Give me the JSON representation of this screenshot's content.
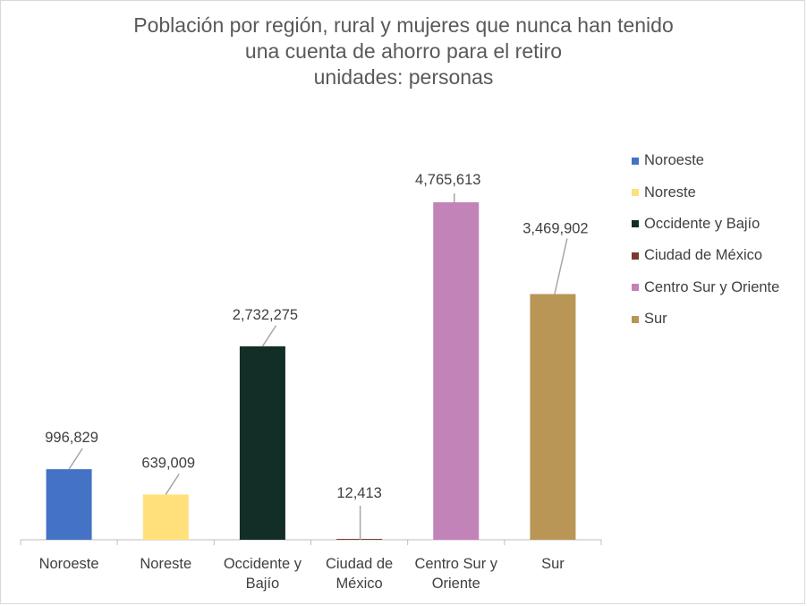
{
  "chart_data": {
    "type": "bar",
    "title_lines": [
      "Población por región, rural y mujeres que nunca han tenido",
      "una cuenta de ahorro para el retiro",
      "unidades: personas"
    ],
    "categories": [
      "Noroeste",
      "Noreste",
      "Occidente y Bajío",
      "Ciudad de México",
      "Centro Sur y Oriente",
      "Sur"
    ],
    "category_label_lines": [
      [
        "Noroeste"
      ],
      [
        "Noreste"
      ],
      [
        "Occidente y",
        "Bajío"
      ],
      [
        "Ciudad de",
        "México"
      ],
      [
        "Centro Sur y",
        "Oriente"
      ],
      [
        "Sur"
      ]
    ],
    "values": [
      996829,
      639009,
      2732275,
      12413,
      4765613,
      3469902
    ],
    "data_labels": [
      "996,829",
      "639,009",
      "2,732,275",
      "12,413",
      "4,765,613",
      "3,469,902"
    ],
    "colors": [
      "#4472c4",
      "#ffe07a",
      "#122e27",
      "#7a3b2e",
      "#c283b8",
      "#b99656"
    ],
    "legend_placement": "right",
    "grid": false,
    "ylim": [
      0,
      4765613
    ]
  }
}
